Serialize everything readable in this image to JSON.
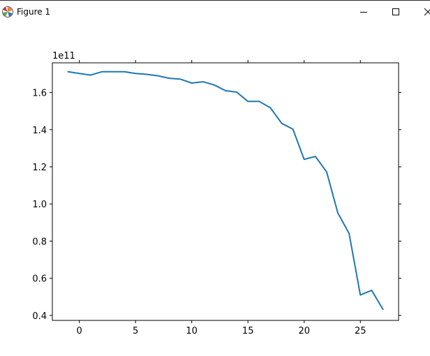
{
  "window": {
    "title": "Figure 1",
    "icon": "matplotlib-icon",
    "controls": {
      "minimize_icon": "minimize-icon",
      "maximize_icon": "maximize-icon",
      "close_icon": "close-icon"
    }
  },
  "chart_data": {
    "type": "line",
    "title": "",
    "xlabel": "",
    "ylabel": "",
    "y_offset_label": "1e11",
    "xlim": [
      -2.4,
      28.4
    ],
    "ylim": [
      0.373,
      1.76
    ],
    "xticks": [
      0,
      5,
      10,
      15,
      20,
      25
    ],
    "xtick_labels": [
      "0",
      "5",
      "10",
      "15",
      "20",
      "25"
    ],
    "yticks": [
      0.4,
      0.6,
      0.8,
      1.0,
      1.2,
      1.4,
      1.6
    ],
    "ytick_labels": [
      "0.4",
      "0.6",
      "0.8",
      "1.0",
      "1.2",
      "1.4",
      "1.6"
    ],
    "grid": false,
    "ticks_on_all_sides": true,
    "series": [
      {
        "color": "#1f77b4",
        "x": [
          -1,
          0,
          1,
          2,
          3,
          4,
          5,
          6,
          7,
          8,
          9,
          10,
          11,
          12,
          13,
          14,
          15,
          16,
          17,
          18,
          19,
          20,
          21,
          22,
          23,
          24,
          25,
          26,
          27
        ],
        "y": [
          1.712,
          1.703,
          1.694,
          1.712,
          1.712,
          1.712,
          1.703,
          1.698,
          1.69,
          1.677,
          1.672,
          1.651,
          1.658,
          1.641,
          1.61,
          1.602,
          1.552,
          1.552,
          1.518,
          1.434,
          1.403,
          1.24,
          1.256,
          1.173,
          0.951,
          0.841,
          0.51,
          0.535,
          0.433
        ]
      }
    ]
  }
}
